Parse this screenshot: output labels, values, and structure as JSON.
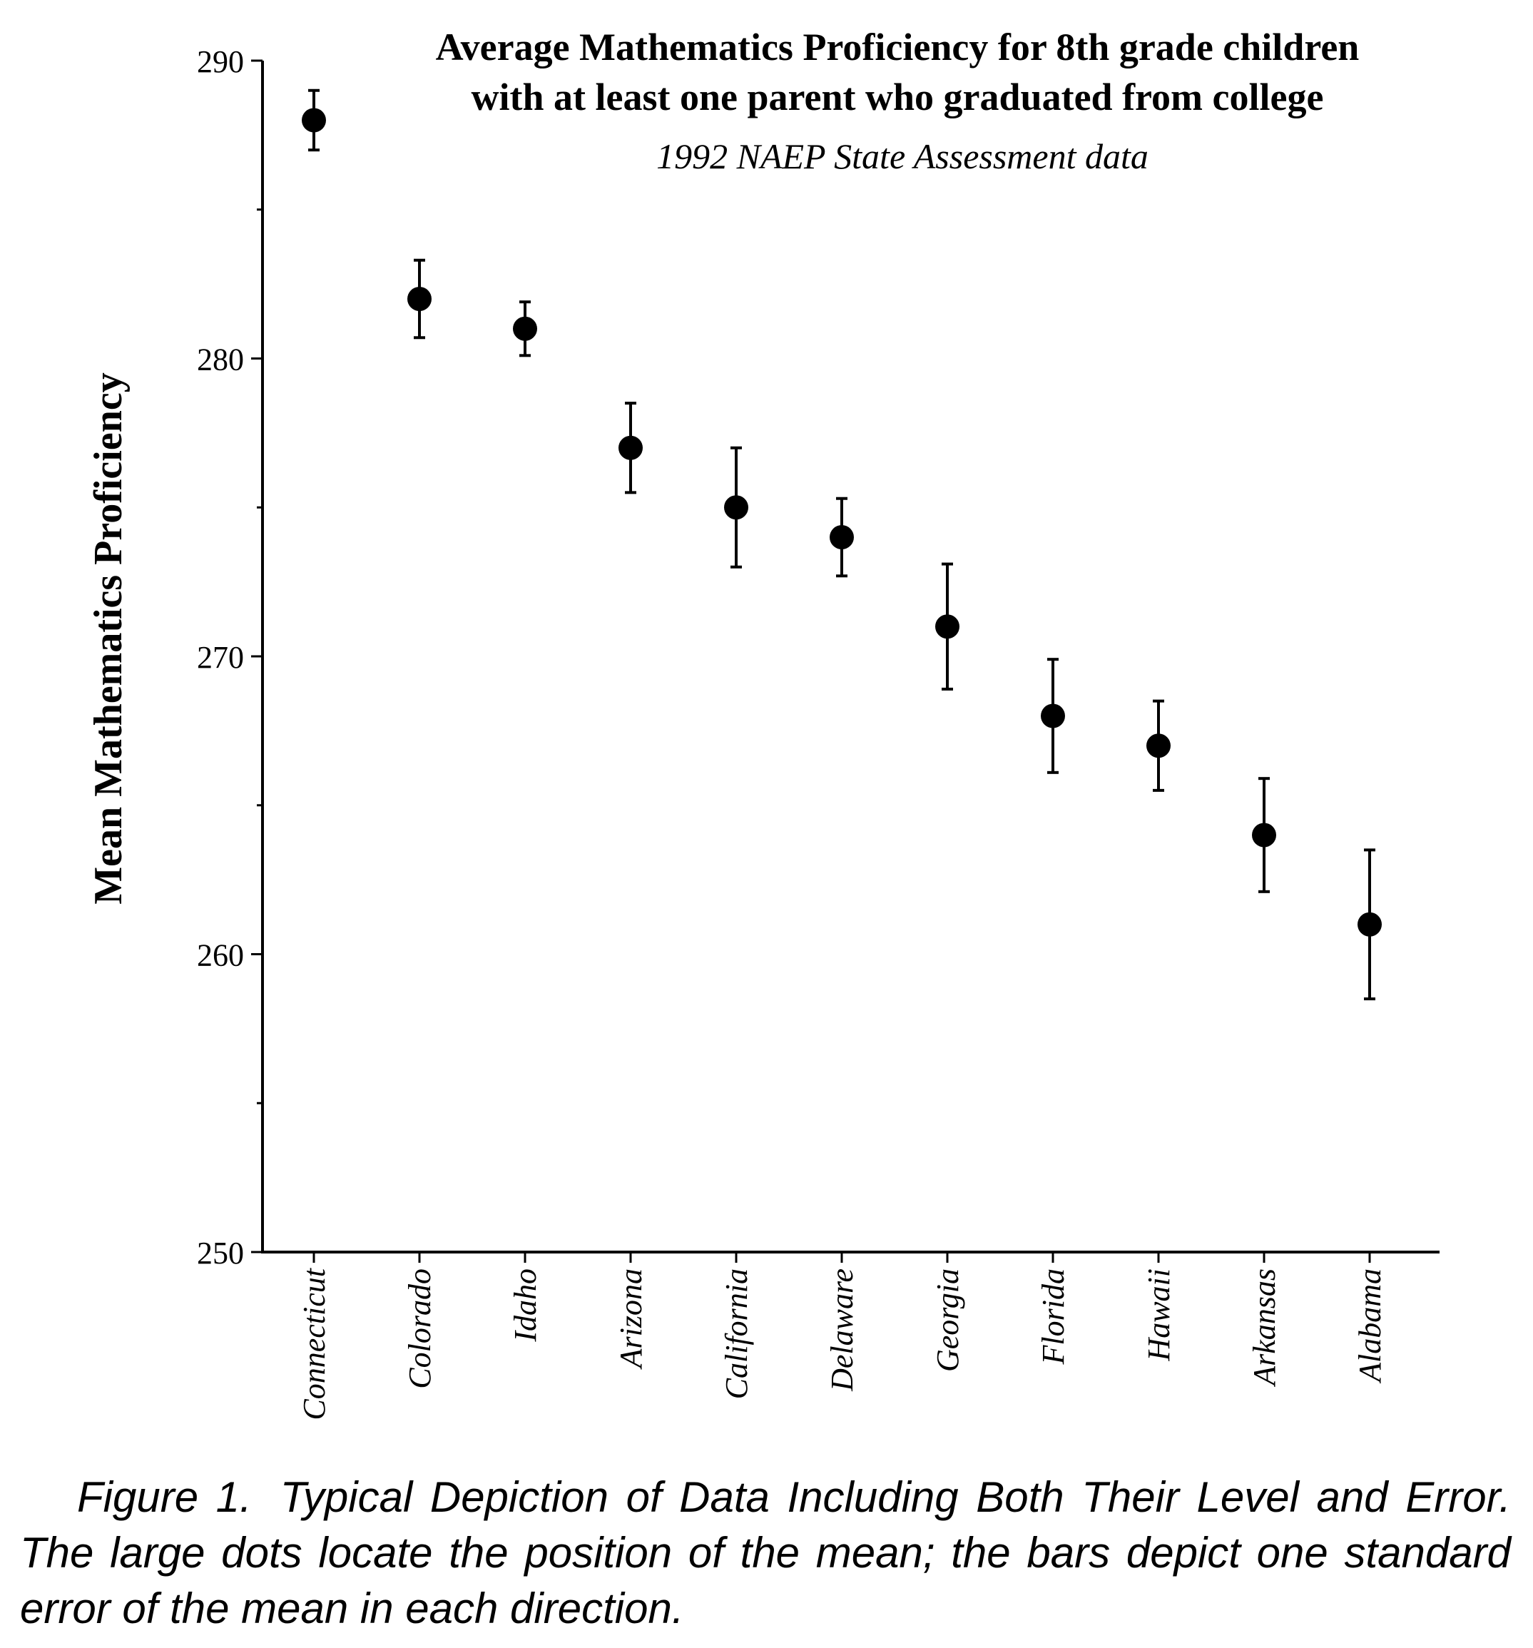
{
  "chart_data": {
    "type": "scatter",
    "title_lines": [
      "Average Mathematics Proficiency for 8th grade children",
      "with at least one parent who graduated from college"
    ],
    "subtitle": "1992 NAEP State Assessment data",
    "xlabel": "",
    "ylabel": "Mean Mathematics Proficiency",
    "ylim": [
      250,
      290
    ],
    "y_ticks": [
      250,
      260,
      270,
      280,
      290
    ],
    "y_minor_ticks": [
      255,
      265,
      275,
      285
    ],
    "grid": false,
    "categories": [
      "Connecticut",
      "Colorado",
      "Idaho",
      "Arizona",
      "California",
      "Delaware",
      "Georgia",
      "Florida",
      "Hawaii",
      "Arkansas",
      "Alabama"
    ],
    "means": [
      288,
      282,
      281,
      277,
      275,
      274,
      271,
      268,
      267,
      264,
      261
    ],
    "std_errors": [
      1.0,
      1.3,
      0.9,
      1.5,
      2.0,
      1.3,
      2.1,
      1.9,
      1.5,
      1.9,
      2.5
    ],
    "marker_color": "#000000"
  },
  "caption": {
    "label": "Figure 1.",
    "text": "Typical Depiction of Data Including Both Their Level and Error. The large dots locate the position of the mean; the bars depict one standard error of the mean in each direction."
  }
}
